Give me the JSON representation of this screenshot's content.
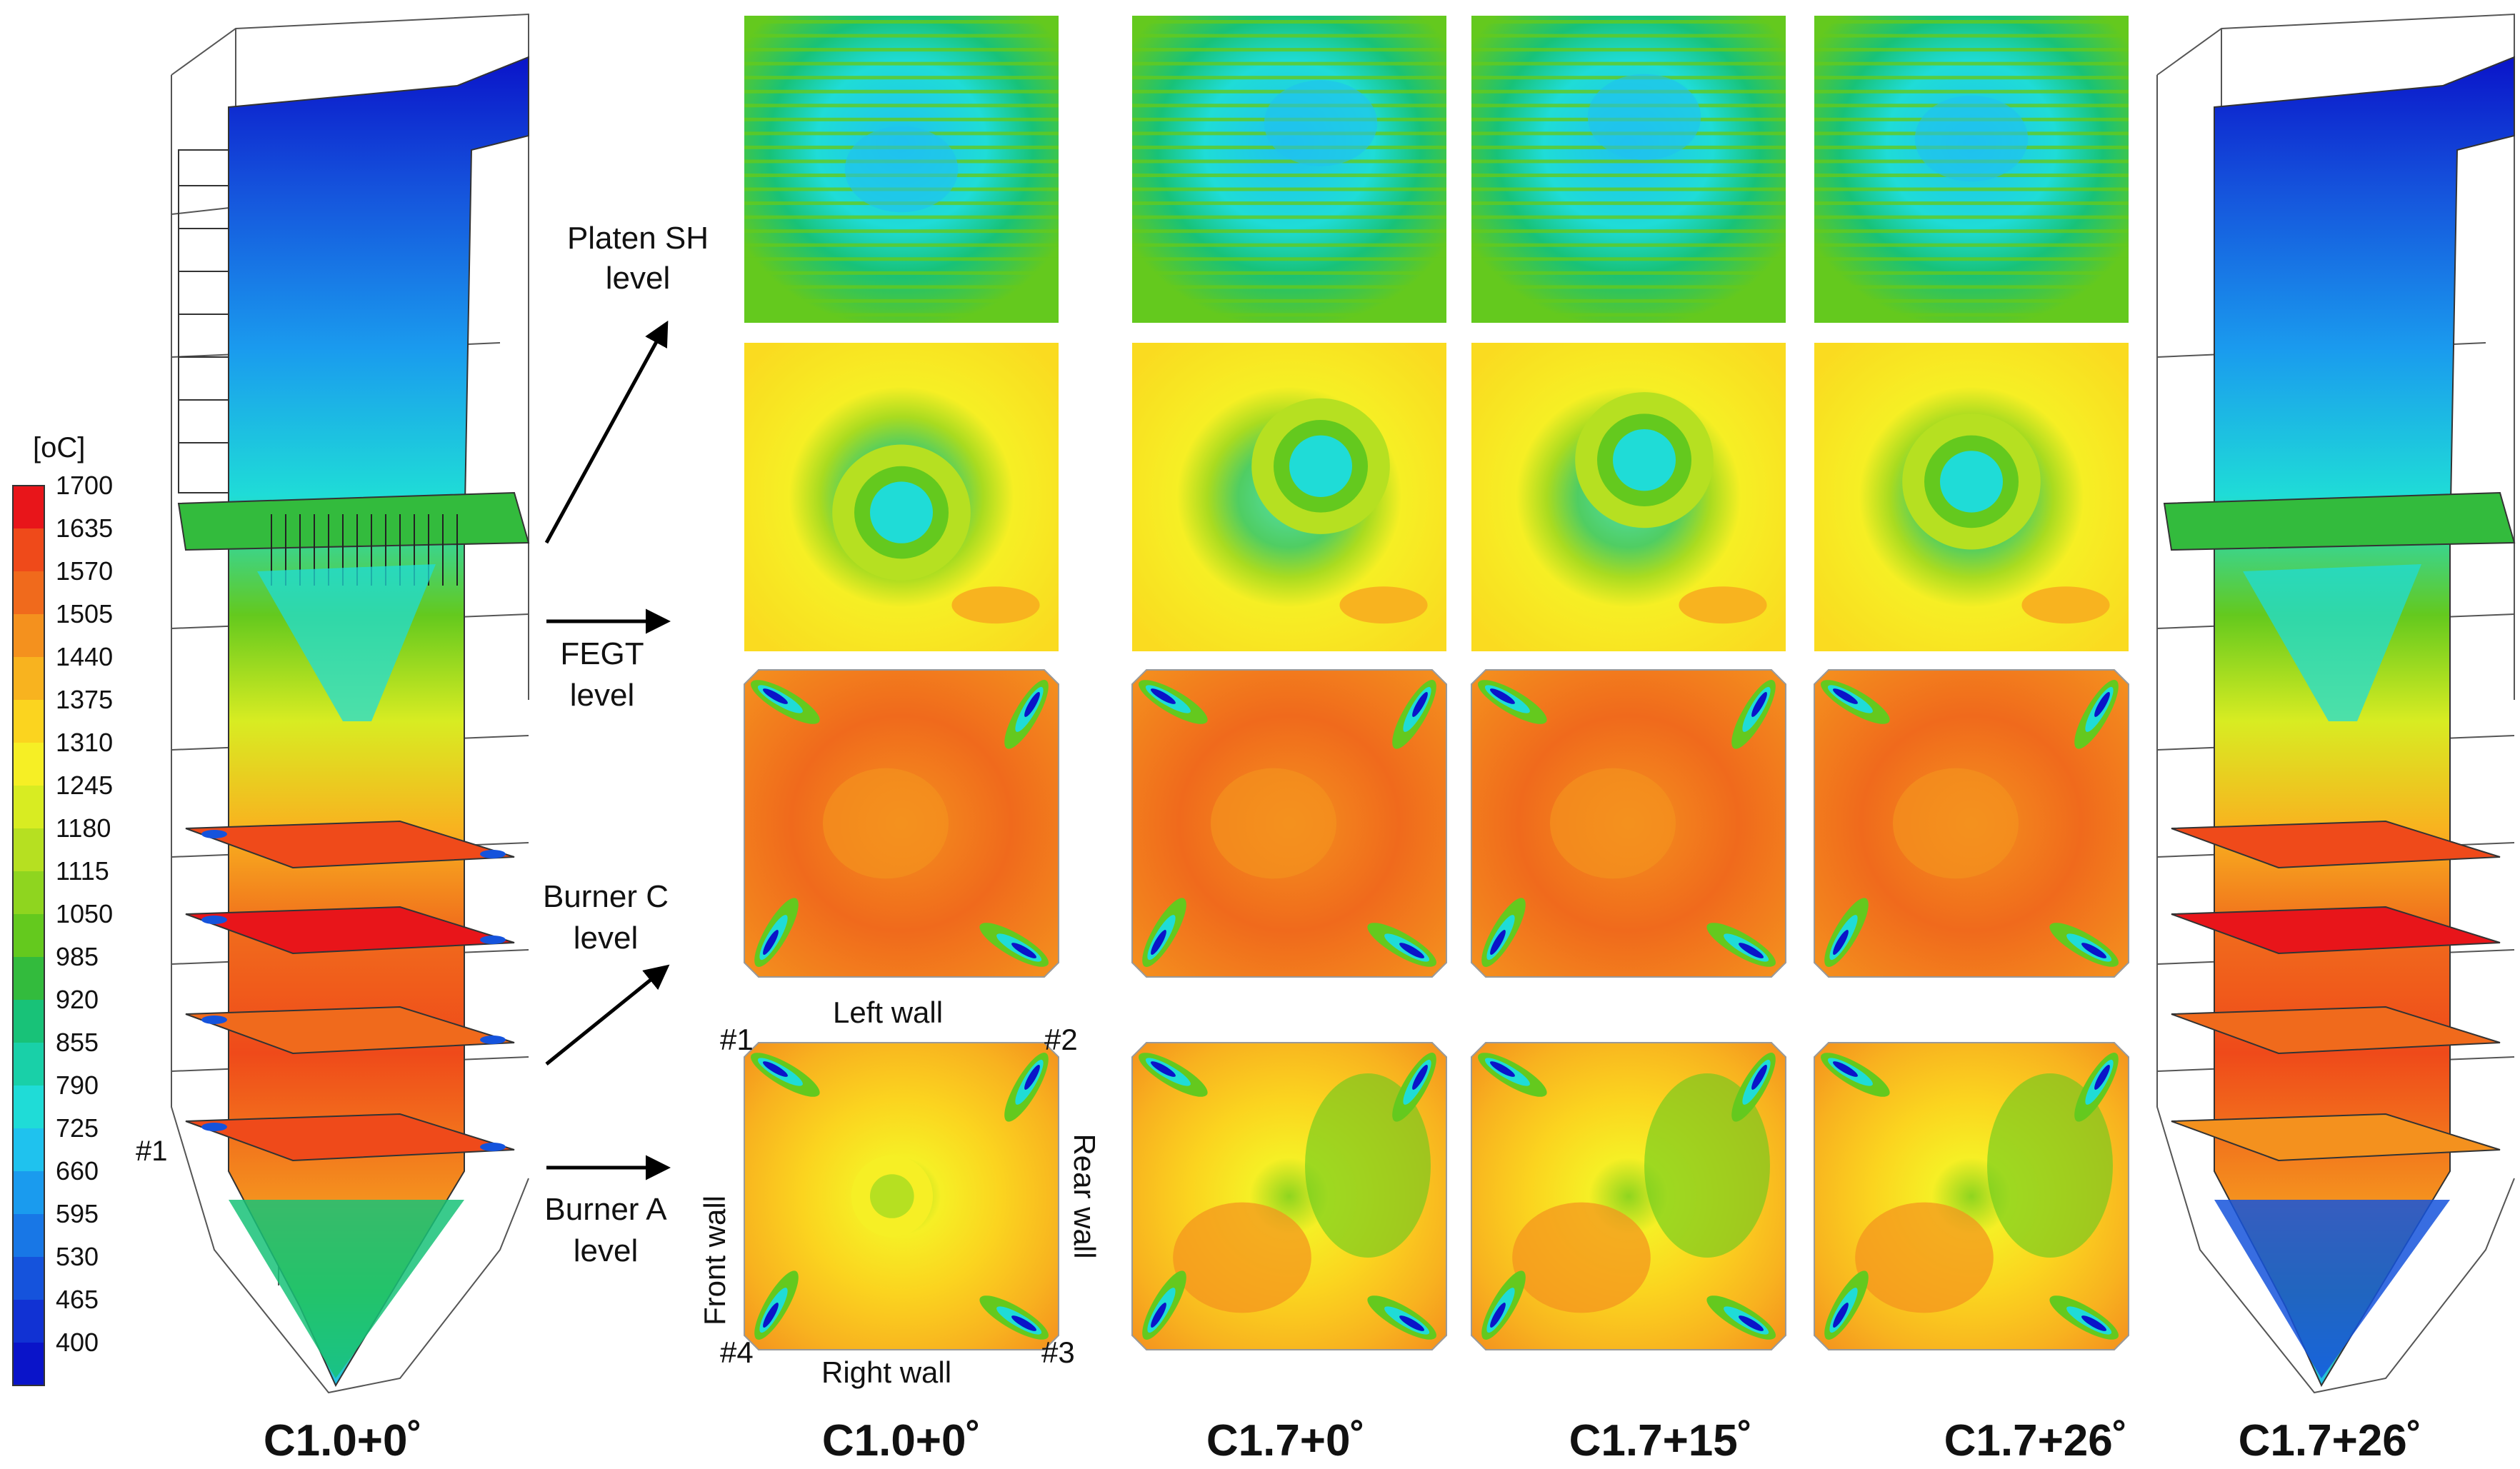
{
  "colorbar": {
    "unit": "[oC]",
    "ticks": [
      "1700",
      "1635",
      "1570",
      "1505",
      "1440",
      "1375",
      "1310",
      "1245",
      "1180",
      "1115",
      "1050",
      "985",
      "920",
      "855",
      "790",
      "725",
      "660",
      "595",
      "530",
      "465",
      "400"
    ],
    "colors": [
      "#e8151a",
      "#ef4a1a",
      "#f06a1c",
      "#f4911e",
      "#f8b31f",
      "#fbd41f",
      "#f6ef25",
      "#d8ec22",
      "#b6e021",
      "#8fd51f",
      "#64c91e",
      "#33bb3d",
      "#18c278",
      "#19d0a8",
      "#1fdcd7",
      "#1fc2ee",
      "#1a9bee",
      "#1877e6",
      "#1553dc",
      "#1132d3",
      "#0a14c9"
    ]
  },
  "labels": {
    "platen_sh": [
      "Platen SH",
      "level"
    ],
    "fegt": [
      "FEGT",
      "level"
    ],
    "burner_c": [
      "Burner C",
      "level"
    ],
    "burner_a": [
      "Burner A",
      "level"
    ],
    "left_wall": "Left wall",
    "right_wall": "Right wall",
    "front_wall": "Front wall",
    "rear_wall": "Rear wall",
    "corner_1": "#1",
    "corner_2": "#2",
    "corner_3": "#3",
    "corner_4": "#4",
    "side_1": "#1"
  },
  "columns": [
    "C1.0+0˚",
    "C1.0+0˚",
    "C1.7+0˚",
    "C1.7+15˚",
    "C1.7+26˚",
    "C1.7+26˚"
  ],
  "palette": {
    "red": "#e8151a",
    "redorange": "#f06a1c",
    "orange": "#f4911e",
    "amber": "#f8b31f",
    "yellow": "#f6ef25",
    "lime": "#b6e021",
    "green": "#64c91e",
    "teal": "#19d0a8",
    "cyan": "#1fdcd7",
    "lightblue": "#1fc2ee",
    "blue": "#1553dc",
    "darkblue": "#0a14c9",
    "line": "#444444"
  }
}
